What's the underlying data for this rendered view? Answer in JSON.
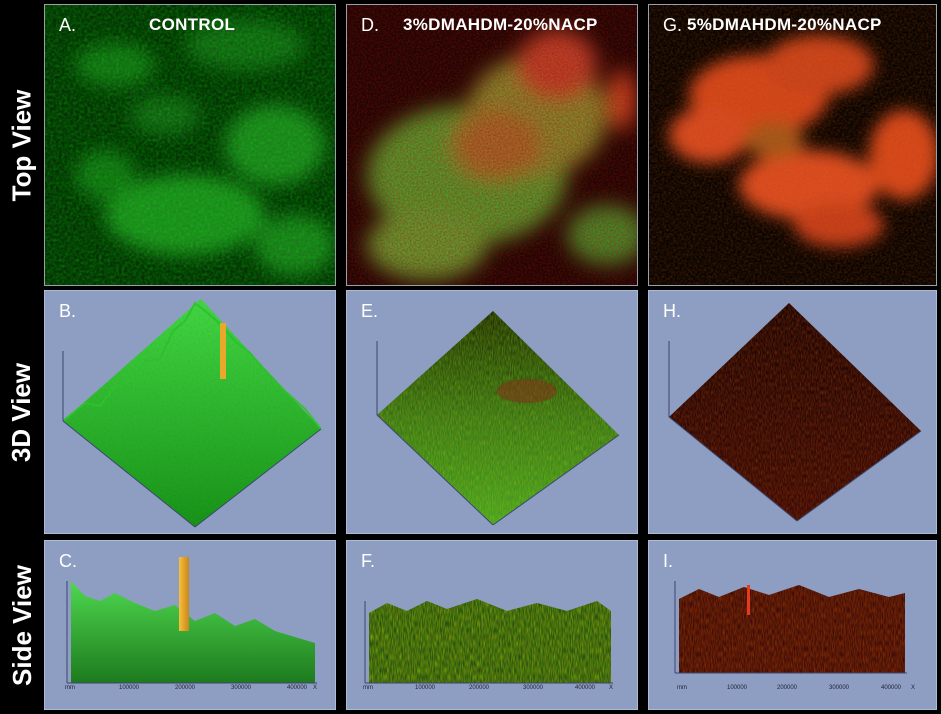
{
  "row_labels": {
    "top": "Top View",
    "three_d": "3D View",
    "side": "Side View"
  },
  "panels": {
    "a": {
      "letter": "A.",
      "title": "CONTROL"
    },
    "b": {
      "letter": "B."
    },
    "c": {
      "letter": "C."
    },
    "d": {
      "letter": "D.",
      "title": "3%DMAHDM-20%NACP"
    },
    "e": {
      "letter": "E."
    },
    "f": {
      "letter": "F."
    },
    "g": {
      "letter": "G.",
      "title": "5%DMAHDM-20%NACP"
    },
    "h": {
      "letter": "H."
    },
    "i": {
      "letter": "I."
    }
  },
  "side_axis_ticks": [
    "mm",
    "100000",
    "200000",
    "300000",
    "400000",
    "X"
  ],
  "colors": {
    "live_green": "#2fd62f",
    "dead_red": "#e2331c",
    "spike_yellow": "#f0b030",
    "panel_bg": "#8e9ec2"
  }
}
